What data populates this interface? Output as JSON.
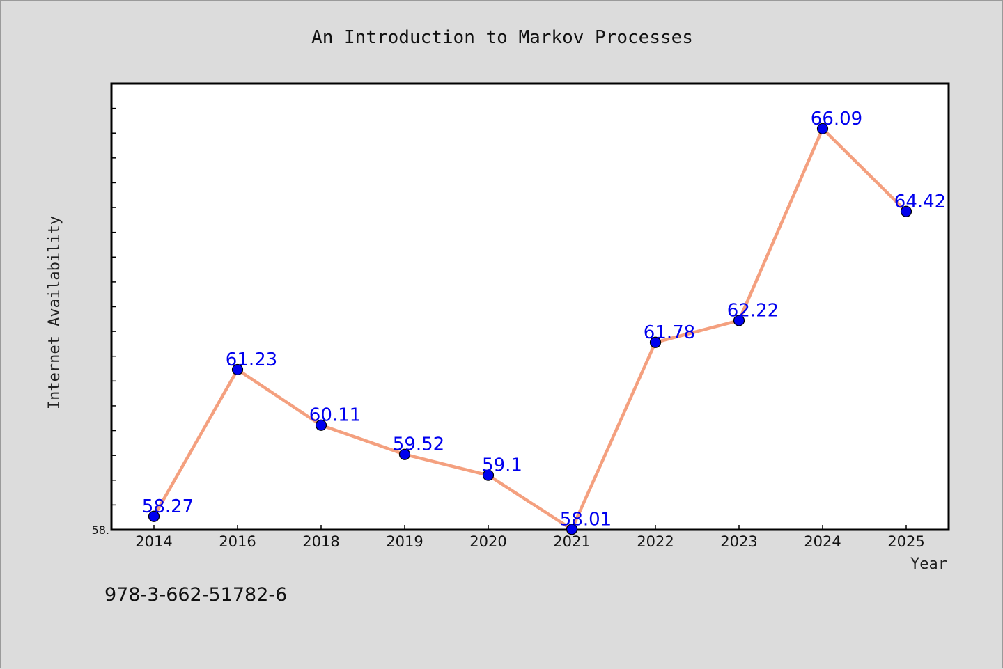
{
  "chart_data": {
    "type": "line",
    "title": "An Introduction to Markov Processes",
    "xlabel": "Year",
    "ylabel": "Internet Availability",
    "categories": [
      "2014",
      "2016",
      "2018",
      "2019",
      "2020",
      "2021",
      "2022",
      "2023",
      "2024",
      "2025"
    ],
    "series": [
      {
        "values": [
          58.27,
          61.23,
          60.11,
          59.52,
          59.1,
          58.01,
          61.78,
          62.22,
          66.09,
          64.42
        ]
      }
    ],
    "data_labels": [
      "58.27",
      "61.23",
      "60.11",
      "59.52",
      "59.1",
      "58.01",
      "61.78",
      "62.22",
      "66.09",
      "64.42"
    ],
    "ylim": [
      58.0,
      67.0
    ],
    "y_tick_labels": [
      "58."
    ],
    "grid": false,
    "line_color": "#f4a07f",
    "marker_color": "#0000ee",
    "label_color": "#0000ee",
    "plot_background": "#ffffff",
    "page_background": "#dcdcdc"
  },
  "footer": {
    "isbn": "978-3-662-51782-6"
  }
}
